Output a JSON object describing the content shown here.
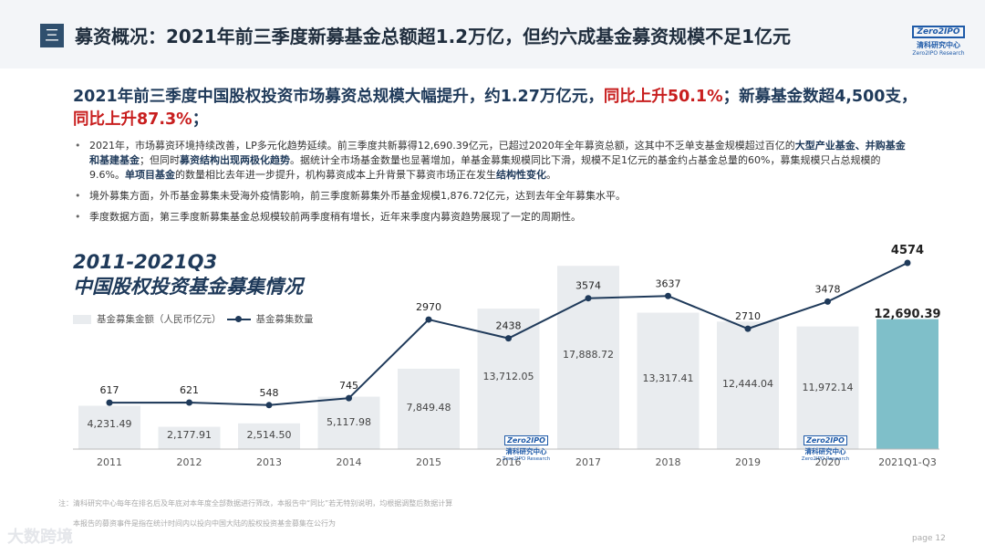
{
  "header": {
    "badge": "三",
    "title": "募资概况：2021年前三季度新募基金总额超1.2万亿，但约六成基金募资规模不足1亿元"
  },
  "logo": {
    "mark": "Zero2IPO",
    "cn": "清科研究中心",
    "en": "Zero2IPO Research"
  },
  "headline": {
    "part1": "2021年前三季度中国股权投资市场募资总规模大幅提升，约1.27万亿元，",
    "red1": "同比上升50.1%",
    "part2": "；新募基金数超4,500支，",
    "red2": "同比上升87.3%",
    "part3": "；"
  },
  "bullets": {
    "b1": {
      "t1": "2021年，市场募资环境持续改善，LP多元化趋势延续。前三季度共新募得12,690.39亿元，已超过2020年全年募资总额，这其中不乏单支基金规模超过百亿的",
      "h1": "大型产业基金、并购基金和基建基金",
      "t2": "；但同时",
      "h2": "募资结构出现两极化趋势",
      "t3": "。据统计全市场基金数量也显著增加，单基金募集规模同比下滑，规模不足1亿元的基金约占基金总量的60%，募集规模只占总规模的9.6%。",
      "h3": "单项目基金",
      "t4": "的数量相比去年进一步提升，机构募资成本上升背景下募资市场正在发生",
      "h4": "结构性变化",
      "t5": "。"
    },
    "b2": "境外募集方面，外币基金募集未受海外疫情影响，前三季度新募集外币基金规模1,876.72亿元，达到去年全年募集水平。",
    "b3": "季度数据方面，第三季度新募集基金总规模较前两季度稍有增长，近年来季度内募资趋势展现了一定的周期性。"
  },
  "chart_title": {
    "line1": "2011-2021Q3",
    "line2": "中国股权投资基金募集情况"
  },
  "legend": {
    "bar": "基金募集金额（人民币亿元）",
    "line": "基金募集数量"
  },
  "chart_data": {
    "type": "bar",
    "categories": [
      "2011",
      "2012",
      "2013",
      "2014",
      "2015",
      "2016",
      "2017",
      "2018",
      "2019",
      "2020",
      "2021Q1-Q3"
    ],
    "series": [
      {
        "name": "基金募集金额（人民币亿元）",
        "type": "bar",
        "values": [
          4231.49,
          2177.91,
          2514.5,
          5117.98,
          7849.48,
          13712.05,
          17888.72,
          13317.41,
          12444.04,
          11972.14,
          12690.39
        ],
        "labels": [
          "4,231.49",
          "2,177.91",
          "2,514.50",
          "5,117.98",
          "7,849.48",
          "13,712.05",
          "17,888.72",
          "13,317.41",
          "12,444.04",
          "11,972.14",
          "12,690.39"
        ]
      },
      {
        "name": "基金募集数量",
        "type": "line",
        "values": [
          617,
          621,
          548,
          745,
          2970,
          2438,
          3574,
          3637,
          2710,
          3478,
          4574
        ],
        "labels": [
          "617",
          "621",
          "548",
          "745",
          "2970",
          "2438",
          "3574",
          "3637",
          "2710",
          "3478",
          "4574"
        ]
      }
    ],
    "bar_color": "#e9ecef",
    "highlight_bar_color": "#7fbfc9",
    "line_color": "#1f3a5a"
  },
  "watermark": {
    "mark": "Zero2IPO",
    "cn": "清科研究中心",
    "en": "Zero2IPO Research"
  },
  "notes": {
    "n1": "注：清科研究中心每年在排名后及年底对本年度全部数据进行筛改，本报告中“同比”若无特别说明，均根据调整后数据计算",
    "n2": "本报告的募资事件是指在统计时间内以投向中国大陆的股权投资基金募集在公行为"
  },
  "page": "page  12",
  "footer_watermark": "大数跨境"
}
